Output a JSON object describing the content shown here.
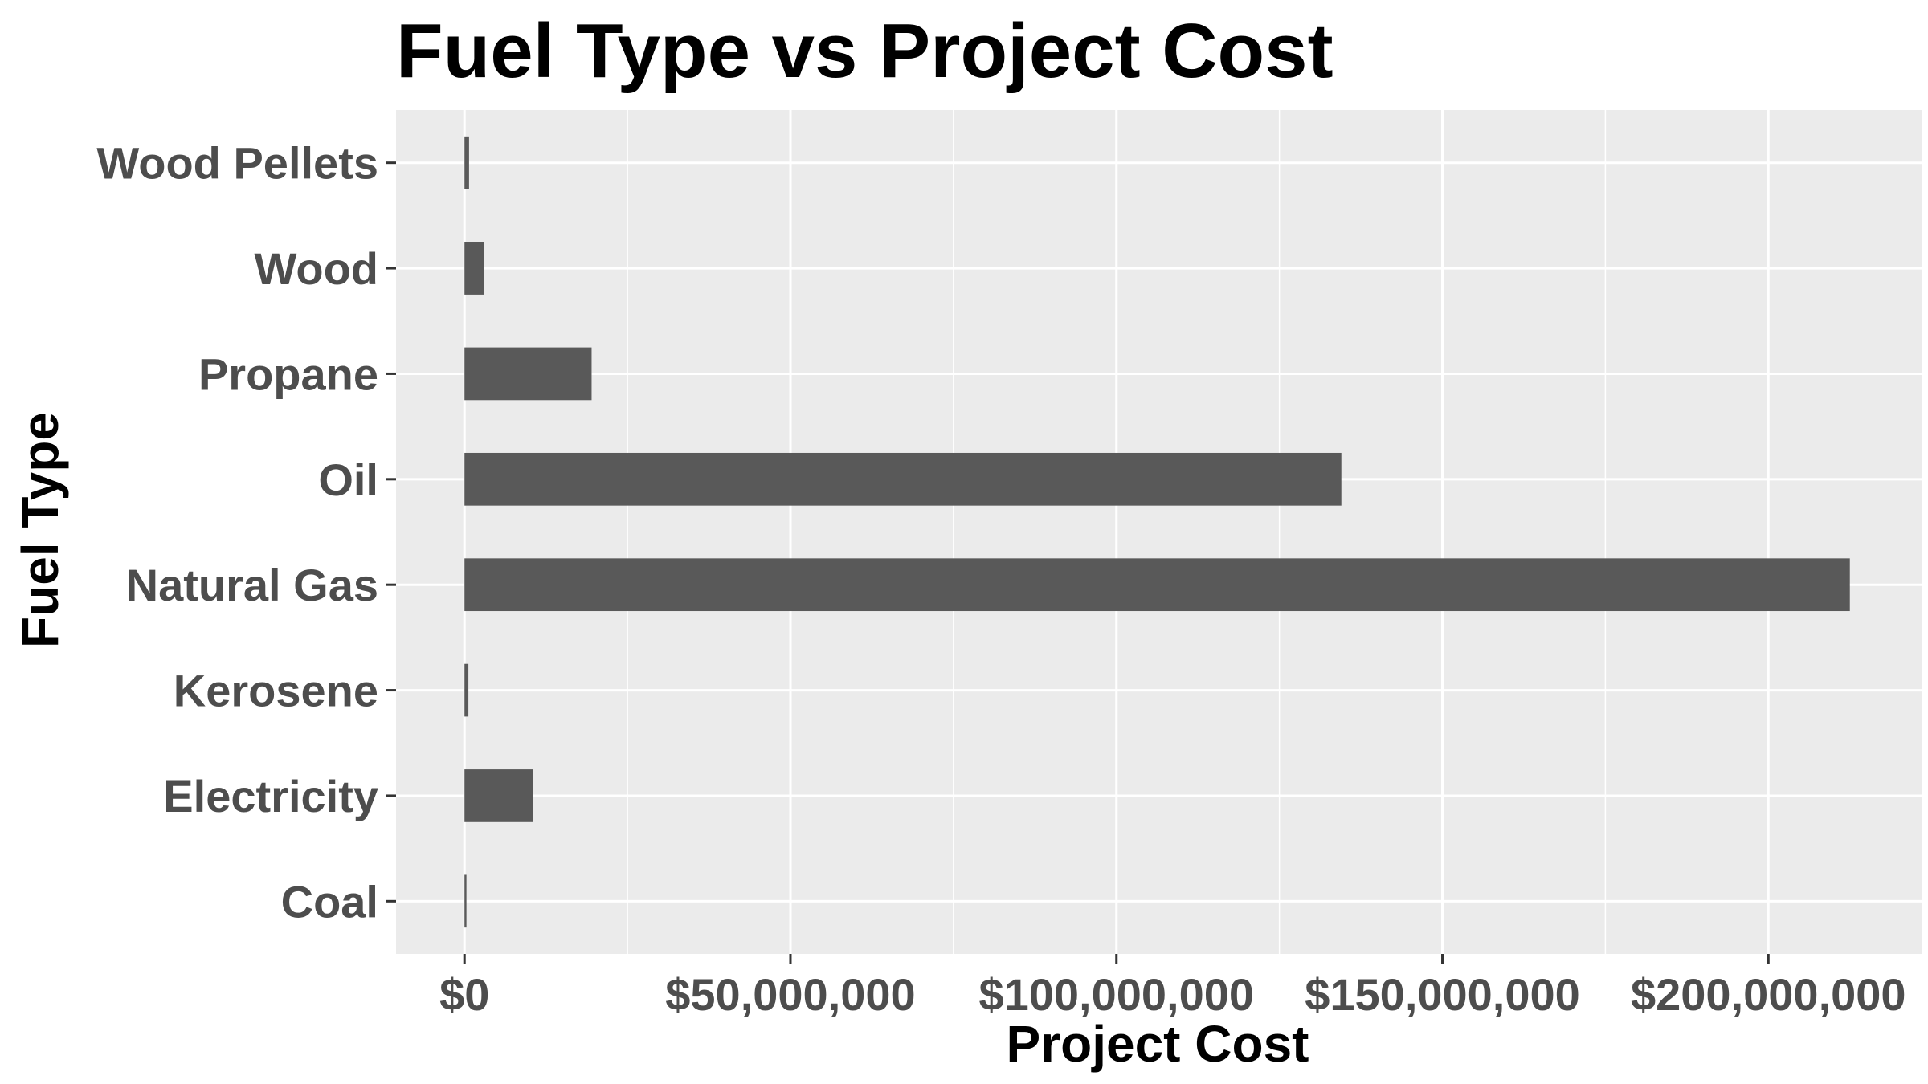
{
  "chart_data": {
    "type": "bar",
    "orientation": "horizontal",
    "title": "Fuel Type vs Project Cost",
    "xlabel": "Project Cost",
    "ylabel": "Fuel Type",
    "categories": [
      "Coal",
      "Electricity",
      "Kerosene",
      "Natural Gas",
      "Oil",
      "Propane",
      "Wood",
      "Wood Pellets"
    ],
    "values": [
      300000,
      10500000,
      600000,
      212500000,
      134500000,
      19500000,
      3000000,
      700000
    ],
    "xlim": [
      -10500000,
      223500000
    ],
    "x_ticks": [
      0,
      50000000,
      100000000,
      150000000,
      200000000
    ],
    "x_tick_labels": [
      "$0",
      "$50,000,000",
      "$100,000,000",
      "$150,000,000",
      "$200,000,000"
    ],
    "grid": true,
    "bar_color": "#595959",
    "panel_color": "#ebebeb",
    "grid_color": "#ffffff"
  }
}
